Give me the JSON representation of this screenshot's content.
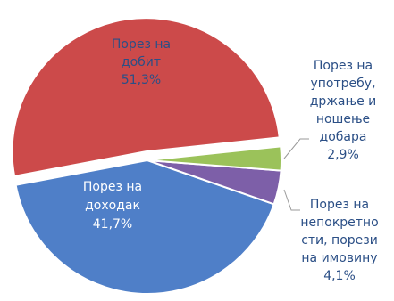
{
  "chart_data": {
    "type": "pie",
    "slices": [
      {
        "name": "Порез на добит",
        "value": 51.3,
        "value_label": "51,3%",
        "color": "#cc4a4a"
      },
      {
        "name": "Порез на доходак",
        "value": 41.7,
        "value_label": "41,7%",
        "color": "#4f7fc8"
      },
      {
        "name": "Порез на непокретности, порези на имовину",
        "value": 4.1,
        "value_label": "4,1%",
        "color": "#7d5fa8"
      },
      {
        "name": "Порез на употребу, држање и ношење добара",
        "value": 2.9,
        "value_label": "2,9%",
        "color": "#9bc25a"
      }
    ],
    "labels": [
      {
        "lines": [
          "Порез на",
          "добит",
          "51,3%"
        ],
        "color": "#2b4f86"
      },
      {
        "lines": [
          "Порез на",
          "доходак",
          "41,7%"
        ],
        "color": "#ffffff"
      },
      {
        "lines": [
          "Порез на",
          "непокретно",
          "сти, порези",
          "на имовину",
          "4,1%"
        ],
        "color": "#2b4f86"
      },
      {
        "lines": [
          "Порез на",
          "употребу,",
          "држање и",
          "ношење",
          "добара",
          "2,9%"
        ],
        "color": "#2b4f86"
      }
    ]
  }
}
